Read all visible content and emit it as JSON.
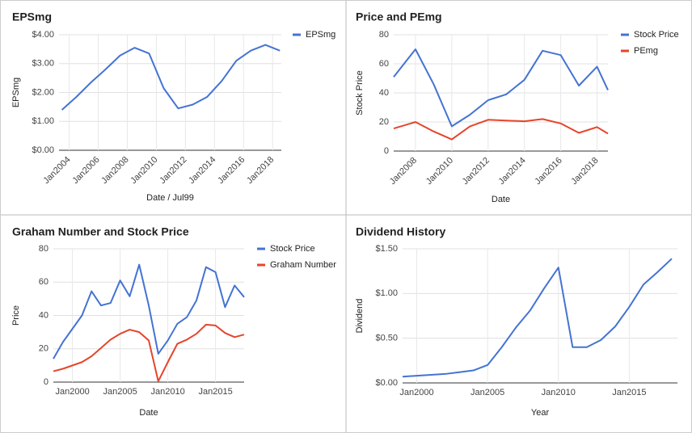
{
  "chart_data": [
    {
      "type": "line",
      "title": "EPSmg",
      "x_label": "Date / Jul99",
      "y_label": "EPSmg",
      "legend": "right",
      "grid": true,
      "x": [
        2003.5,
        2004.5,
        2005.5,
        2006.5,
        2007.5,
        2008.5,
        2009.5,
        2010.5,
        2011.5,
        2012.5,
        2013.5,
        2014.5,
        2015.5,
        2016.5,
        2017.5,
        2018.5
      ],
      "series": [
        {
          "name": "EPSmg",
          "color": "#4473d3",
          "values": [
            1.4,
            1.85,
            2.35,
            2.8,
            3.28,
            3.55,
            3.35,
            2.15,
            1.45,
            1.58,
            1.85,
            2.4,
            3.1,
            3.45,
            3.65,
            3.45
          ]
        }
      ],
      "xlim": [
        2003.3,
        2018.6
      ],
      "ylim": [
        0,
        4
      ],
      "xticks": [
        {
          "value": 2004,
          "label": "Jan2004"
        },
        {
          "value": 2006,
          "label": "Jan2006"
        },
        {
          "value": 2008,
          "label": "Jan2008"
        },
        {
          "value": 2010,
          "label": "Jan2010"
        },
        {
          "value": 2012,
          "label": "Jan2012"
        },
        {
          "value": 2014,
          "label": "Jan2014"
        },
        {
          "value": 2016,
          "label": "Jan2016"
        },
        {
          "value": 2018,
          "label": "Jan2018"
        }
      ],
      "yticks": [
        {
          "value": 0,
          "label": "$0.00"
        },
        {
          "value": 1,
          "label": "$1.00"
        },
        {
          "value": 2,
          "label": "$2.00"
        },
        {
          "value": 3,
          "label": "$3.00"
        },
        {
          "value": 4,
          "label": "$4.00"
        }
      ]
    },
    {
      "type": "line",
      "title": "Price and PEmg",
      "x_label": "Date",
      "y_label": "Stock Price",
      "legend": "right",
      "grid": true,
      "x": [
        2006.8,
        2008,
        2009,
        2010,
        2011,
        2012,
        2013,
        2014,
        2015,
        2016,
        2017,
        2018,
        2018.6
      ],
      "series": [
        {
          "name": "Stock Price",
          "color": "#4473d3",
          "values": [
            51,
            70,
            46,
            17,
            25,
            35,
            39,
            49,
            69,
            66,
            45,
            58,
            42
          ]
        },
        {
          "name": "PEmg",
          "color": "#e5452b",
          "values": [
            15.5,
            20,
            13.5,
            8,
            17,
            21.5,
            21,
            20.5,
            22,
            19,
            12.5,
            16.5,
            12
          ]
        }
      ],
      "xlim": [
        2006.8,
        2018.6
      ],
      "ylim": [
        0,
        80
      ],
      "xticks": [
        {
          "value": 2008,
          "label": "Jan2008"
        },
        {
          "value": 2010,
          "label": "Jan2010"
        },
        {
          "value": 2012,
          "label": "Jan2012"
        },
        {
          "value": 2014,
          "label": "Jan2014"
        },
        {
          "value": 2016,
          "label": "Jan2016"
        },
        {
          "value": 2018,
          "label": "Jan2018"
        }
      ],
      "yticks": [
        0,
        20,
        40,
        60,
        80
      ]
    },
    {
      "type": "line",
      "title": "Graham Number and Stock Price",
      "x_label": "Date",
      "y_label": "Price",
      "legend": "right",
      "grid": true,
      "x": [
        1998,
        1999,
        2000,
        2001,
        2002,
        2003,
        2004,
        2005,
        2006,
        2007,
        2008,
        2009,
        2010,
        2011,
        2012,
        2013,
        2014,
        2015,
        2016,
        2017,
        2018
      ],
      "series": [
        {
          "name": "Stock Price",
          "color": "#4473d3",
          "values": [
            14,
            24,
            32,
            40,
            54.5,
            46,
            47.5,
            61,
            51.5,
            70.5,
            46,
            17,
            25,
            35,
            39,
            49,
            69,
            66,
            45,
            58,
            51
          ]
        },
        {
          "name": "Graham Number",
          "color": "#e5452b",
          "values": [
            6.5,
            8,
            10,
            12,
            15.5,
            20.5,
            25.5,
            29,
            31.5,
            30,
            25,
            0.5,
            12,
            23,
            25.5,
            29,
            34.5,
            34,
            29.5,
            27,
            28.5
          ]
        }
      ],
      "xlim": [
        1998,
        2018
      ],
      "ylim": [
        0,
        80
      ],
      "xticks": [
        {
          "value": 2000,
          "label": "Jan2000"
        },
        {
          "value": 2005,
          "label": "Jan2005"
        },
        {
          "value": 2010,
          "label": "Jan2010"
        },
        {
          "value": 2015,
          "label": "Jan2015"
        }
      ],
      "yticks": [
        0,
        20,
        40,
        60,
        80
      ]
    },
    {
      "type": "line",
      "title": "Dividend History",
      "x_label": "Year",
      "y_label": "Dividend",
      "grid": true,
      "x": [
        1999,
        2000,
        2001,
        2002,
        2003,
        2004,
        2005,
        2006,
        2007,
        2008,
        2009,
        2010,
        2011,
        2012,
        2013,
        2014,
        2015,
        2016,
        2017,
        2018
      ],
      "color": "#4473d3",
      "values": [
        0.07,
        0.08,
        0.09,
        0.1,
        0.12,
        0.14,
        0.2,
        0.4,
        0.62,
        0.81,
        1.06,
        1.29,
        0.4,
        0.4,
        0.48,
        0.63,
        0.85,
        1.1,
        1.24,
        1.39
      ],
      "xlim": [
        1999,
        2018.4
      ],
      "ylim": [
        0,
        1.5
      ],
      "xticks": [
        {
          "value": 2000,
          "label": "Jan2000"
        },
        {
          "value": 2005,
          "label": "Jan2005"
        },
        {
          "value": 2010,
          "label": "Jan2010"
        },
        {
          "value": 2015,
          "label": "Jan2015"
        }
      ],
      "yticks": [
        {
          "value": 0,
          "label": "$0.00"
        },
        {
          "value": 0.5,
          "label": "$0.50"
        },
        {
          "value": 1,
          "label": "$1.00"
        },
        {
          "value": 1.5,
          "label": "$1.50"
        }
      ]
    }
  ]
}
